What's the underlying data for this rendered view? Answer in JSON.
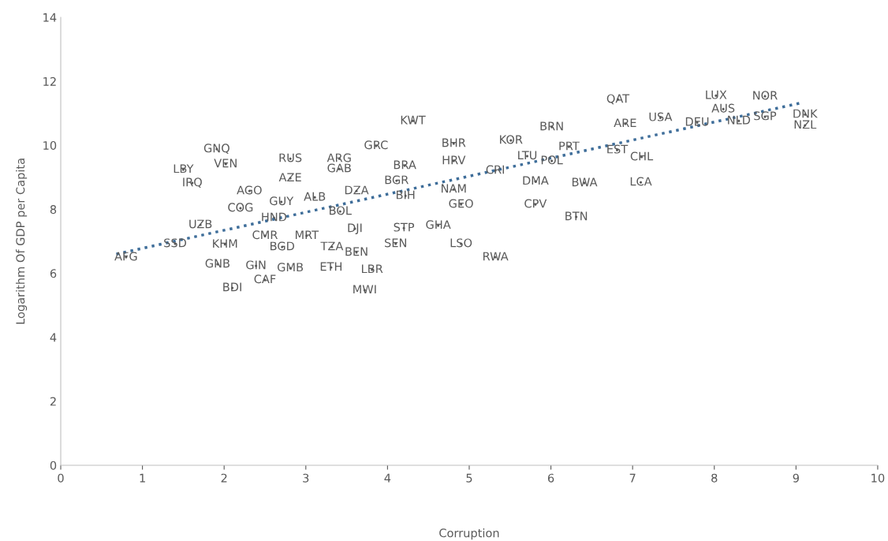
{
  "chart_data": {
    "type": "scatter",
    "xlabel": "Corruption",
    "ylabel": "Logarithm Of GDP per Capita",
    "xlim": [
      0,
      10
    ],
    "xticks": [
      0,
      1,
      2,
      3,
      4,
      5,
      6,
      7,
      8,
      9,
      10
    ],
    "ylim": [
      0,
      14
    ],
    "yticks": [
      0,
      2,
      4,
      6,
      8,
      10,
      12,
      14
    ],
    "grid": false,
    "series": [
      {
        "marker": "circle",
        "color": "#595959",
        "x": [
          0.8,
          1.4,
          1.71,
          1.5,
          1.61,
          1.91,
          2.02,
          2.31,
          2.2,
          2.01,
          1.92,
          2.39,
          2.5,
          2.1,
          2.81,
          2.71,
          2.5,
          2.61,
          2.7,
          2.81,
          2.81,
          3.11,
          3.01,
          3.32,
          3.31,
          3.62,
          3.6,
          3.42,
          3.62,
          3.41,
          3.41,
          3.81,
          3.72,
          3.86,
          4.31,
          4.21,
          4.11,
          4.22,
          4.2,
          4.1,
          4.62,
          4.81,
          4.81,
          4.81,
          4.9,
          4.9,
          5.32,
          5.51,
          5.32,
          5.71,
          6.01,
          5.81,
          5.81,
          6.01,
          6.22,
          6.41,
          6.31,
          6.82,
          6.91,
          6.81,
          7.11,
          7.1,
          7.34,
          7.79,
          8.02,
          8.11,
          8.3,
          8.62,
          8.62,
          9.11,
          9.11
        ],
        "values": [
          6.5,
          6.92,
          7.51,
          9.24,
          8.82,
          9.88,
          9.41,
          8.57,
          8.03,
          6.9,
          6.28,
          6.23,
          5.79,
          5.54,
          6.16,
          6.82,
          7.17,
          7.73,
          8.23,
          9.58,
          8.97,
          8.37,
          7.17,
          6.82,
          6.18,
          6.65,
          7.39,
          7.93,
          8.57,
          9.58,
          9.26,
          6.11,
          5.47,
          9.98,
          10.76,
          9.36,
          8.89,
          8.42,
          7.41,
          6.92,
          7.49,
          10.05,
          9.51,
          8.62,
          8.15,
          6.92,
          6.5,
          10.15,
          9.21,
          9.66,
          9.51,
          8.87,
          8.15,
          10.57,
          9.95,
          8.82,
          7.76,
          11.43,
          10.67,
          9.85,
          9.63,
          8.84,
          10.86,
          10.71,
          11.55,
          11.13,
          10.76,
          11.53,
          10.89,
          10.96,
          10.62
        ],
        "value_labels": [
          "AFG",
          "SSD",
          "UZB",
          "LBY",
          "IRQ",
          "GNQ",
          "VEN",
          "AGO",
          "COG",
          "KHM",
          "GNB",
          "GIN",
          "CAF",
          "BDI",
          "GMB",
          "BGD",
          "CMR",
          "HND",
          "GUY",
          "RUS",
          "AZE",
          "ALB",
          "MRT",
          "TZA",
          "ETH",
          "BEN",
          "DJI",
          "BOL",
          "DZA",
          "ARG",
          "GAB",
          "LBR",
          "MWI",
          "GRC",
          "KWT",
          "BRA",
          "BGR",
          "BIH",
          "STP",
          "SEN",
          "GHA",
          "BHR",
          "HRV",
          "NAM",
          "GEO",
          "LSO",
          "RWA",
          "KOR",
          "CRI",
          "LTU",
          "POL",
          "DMA",
          "CPV",
          "BRN",
          "PRT",
          "BWA",
          "BTN",
          "QAT",
          "ARE",
          "EST",
          "CHL",
          "LCA",
          "USA",
          "DEU",
          "LUX",
          "AUS",
          "NLD",
          "NOR",
          "SGP",
          "DNK",
          "NZL"
        ]
      },
      {
        "type": "line",
        "color": "#3f6e9a",
        "line_style": "dotted",
        "marker": "none",
        "x": [
          0.68,
          9.07
        ],
        "values": [
          6.6,
          11.33
        ]
      }
    ]
  }
}
